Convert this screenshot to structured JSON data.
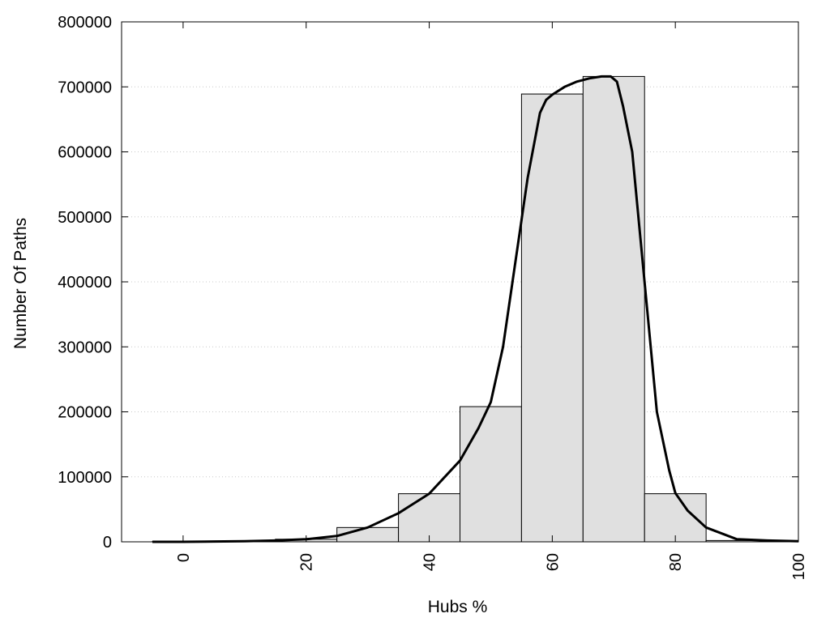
{
  "chart_data": {
    "type": "bar",
    "xlabel": "Hubs %",
    "ylabel": "Number Of Paths",
    "xlim": [
      -10,
      100
    ],
    "ylim": [
      0,
      800000
    ],
    "x_ticks": [
      0,
      20,
      40,
      60,
      80,
      100
    ],
    "y_ticks": [
      0,
      100000,
      200000,
      300000,
      400000,
      500000,
      600000,
      700000,
      800000
    ],
    "y_tick_labels": [
      "0",
      "100000",
      "200000",
      "300000",
      "400000",
      "500000",
      "600000",
      "700000",
      "800000"
    ],
    "x_tick_labels": [
      "0",
      "20",
      "40",
      "60",
      "80",
      "100"
    ],
    "grid": "horizontal dotted",
    "bin_width": 10,
    "bins": [
      {
        "center": 0,
        "value": 500
      },
      {
        "center": 10,
        "value": 1000
      },
      {
        "center": 20,
        "value": 4000
      },
      {
        "center": 30,
        "value": 22000
      },
      {
        "center": 40,
        "value": 74000
      },
      {
        "center": 50,
        "value": 208000
      },
      {
        "center": 60,
        "value": 689000
      },
      {
        "center": 70,
        "value": 716000
      },
      {
        "center": 80,
        "value": 74000
      },
      {
        "center": 90,
        "value": 2000
      }
    ],
    "curve": {
      "x": [
        -5,
        0,
        5,
        10,
        15,
        20,
        25,
        30,
        35,
        40,
        45,
        48,
        50,
        52,
        54,
        56,
        58,
        59,
        60,
        62,
        64,
        66,
        68,
        69.5,
        70.5,
        71.5,
        73,
        75,
        77,
        79,
        80,
        82,
        85,
        90,
        95,
        100
      ],
      "y": [
        0,
        0,
        500,
        1000,
        2000,
        4000,
        9000,
        22000,
        44000,
        74000,
        125000,
        175000,
        215000,
        300000,
        430000,
        560000,
        660000,
        680000,
        688000,
        700000,
        708000,
        713000,
        716000,
        716000,
        708000,
        670000,
        600000,
        400000,
        200000,
        110000,
        75000,
        48000,
        22000,
        4000,
        2000,
        1000
      ]
    }
  }
}
